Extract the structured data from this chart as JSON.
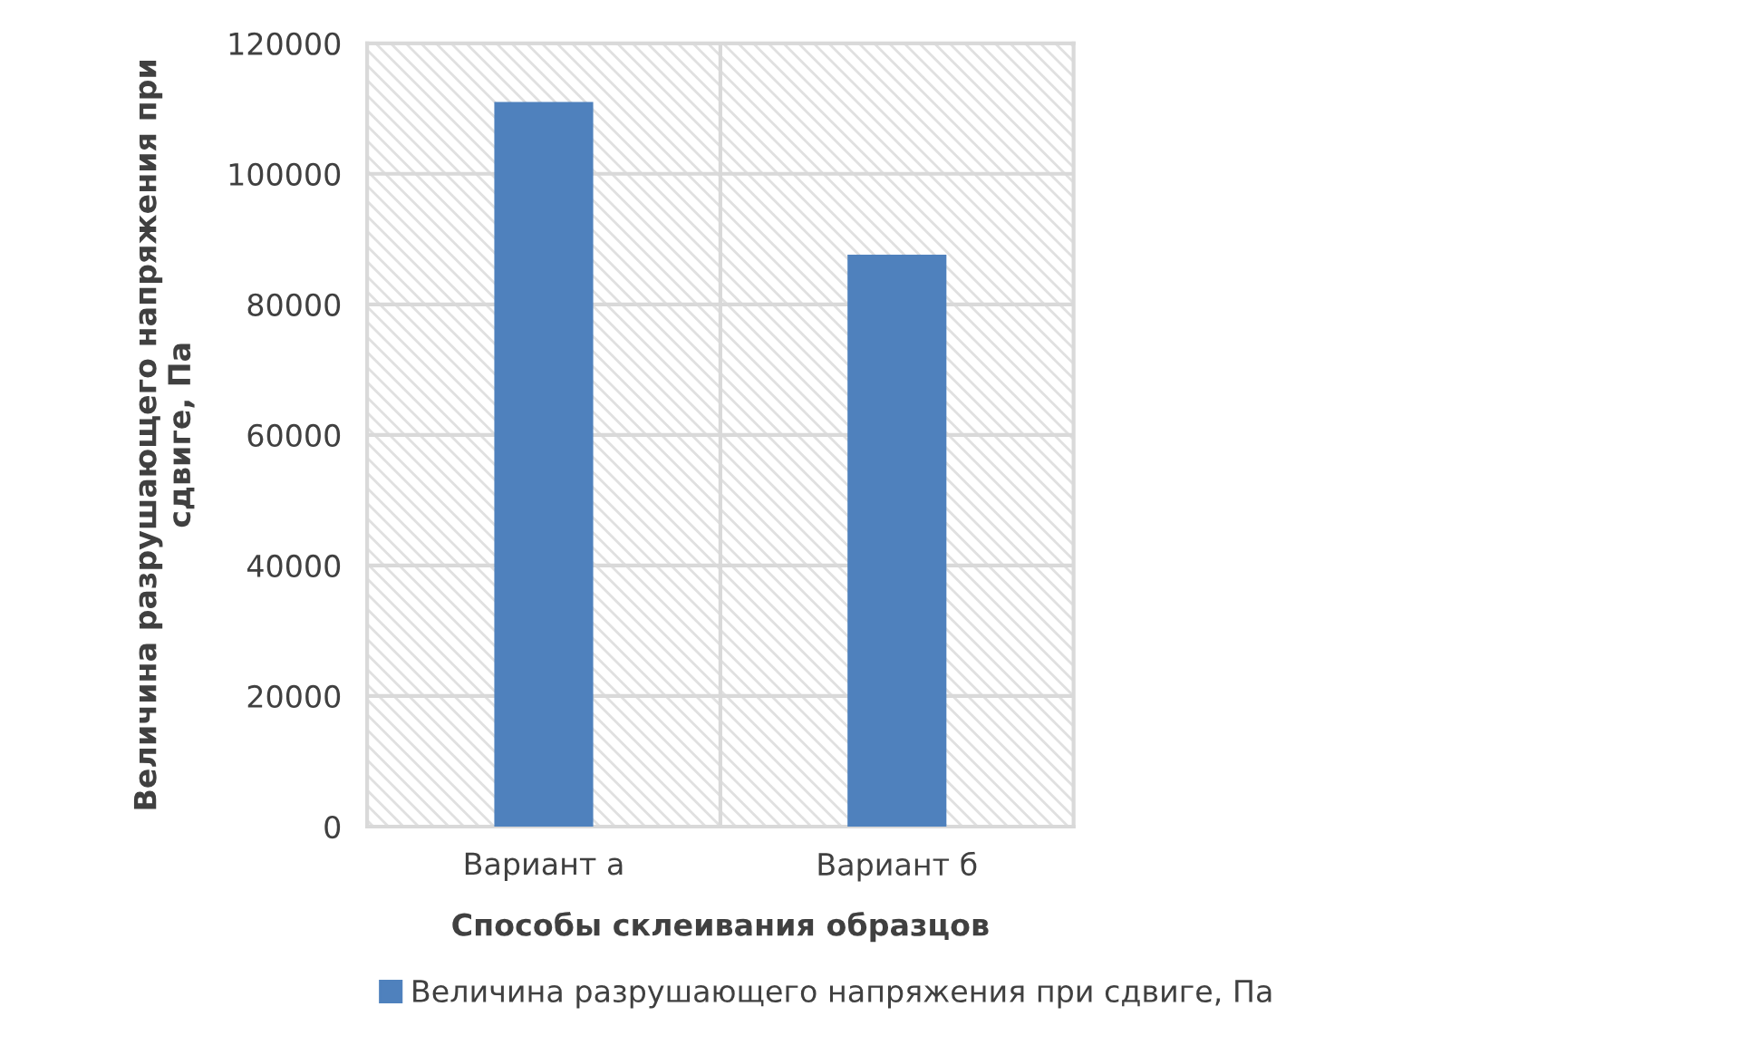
{
  "chart_data": {
    "type": "bar",
    "xlabel": "Способы склеивания образцов",
    "ylabel": "Величина разрушающего напряжения при сдвиге, Па",
    "categories": [
      "Вариант а",
      "Вариант б"
    ],
    "series": [
      {
        "name": "Величина разрушающего напряжения при сдвиге, Па",
        "color": "#4f81bd",
        "values": [
          111000,
          87600
        ]
      }
    ],
    "ylim": [
      0,
      120000
    ],
    "yticks": [
      0,
      20000,
      40000,
      60000,
      80000,
      100000,
      120000
    ],
    "grid": true,
    "legend": "bottom"
  }
}
